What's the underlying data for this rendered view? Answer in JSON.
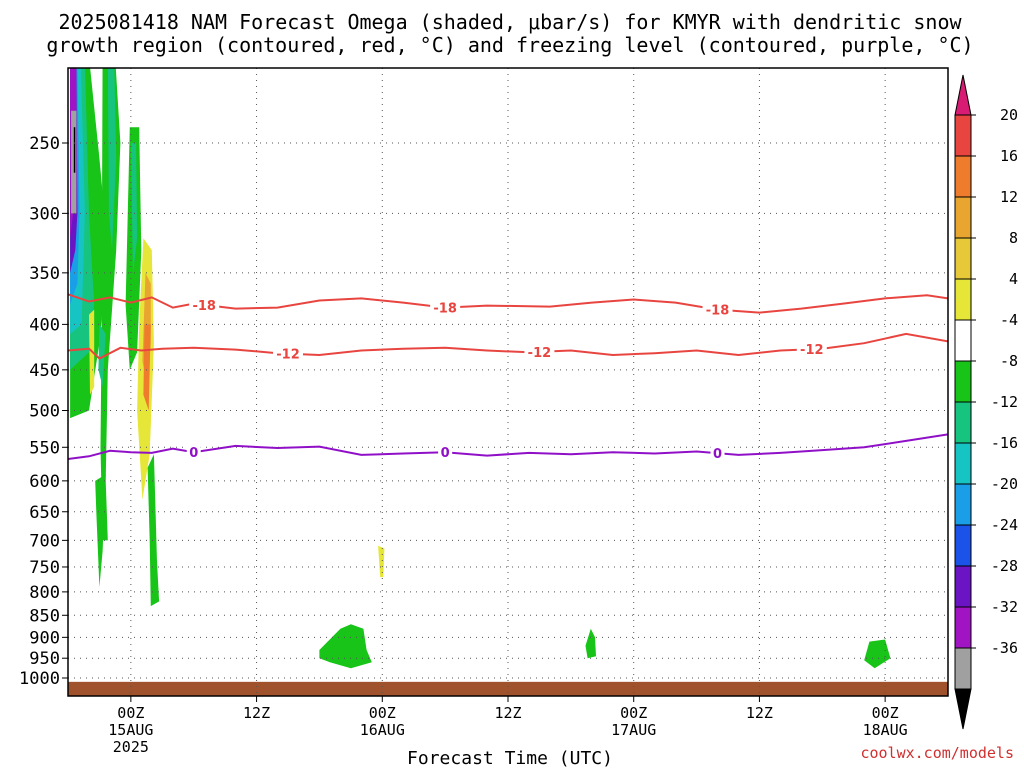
{
  "title": {
    "line1": "2025081418 NAM Forecast Omega (shaded, μbar/s) for KMYR with dendritic snow",
    "line2": "growth region (contoured, red, °C) and freezing level (contoured, purple, °C)"
  },
  "credit": "coolwx.com/models",
  "chart_data": {
    "type": "time-height cross section",
    "xlabel": "Forecast Time (UTC)",
    "x_ticks": [
      {
        "hours": 6,
        "lines": [
          "00Z",
          "15AUG",
          "2025"
        ]
      },
      {
        "hours": 18,
        "lines": [
          "12Z"
        ]
      },
      {
        "hours": 30,
        "lines": [
          "00Z",
          "16AUG"
        ]
      },
      {
        "hours": 42,
        "lines": [
          "12Z"
        ]
      },
      {
        "hours": 54,
        "lines": [
          "00Z",
          "17AUG"
        ]
      },
      {
        "hours": 66,
        "lines": [
          "12Z"
        ]
      },
      {
        "hours": 78,
        "lines": [
          "00Z",
          "18AUG"
        ]
      }
    ],
    "x_range_hours": [
      0,
      84
    ],
    "y_axis": "pressure (mb), log scale, inverted",
    "y_range_mb": [
      200,
      1030
    ],
    "y_ticks": [
      250,
      300,
      350,
      400,
      450,
      500,
      550,
      600,
      650,
      700,
      750,
      800,
      850,
      900,
      950,
      1000
    ],
    "grid": "dotted, at x and y ticks",
    "colorbar": {
      "ticks": [
        "20",
        "16",
        "12",
        "8",
        "4",
        "-4",
        "-8",
        "-12",
        "-16",
        "-20",
        "-24",
        "-28",
        "-32",
        "-36"
      ],
      "colors": [
        "#d81b73",
        "#e84540",
        "#ee7c2c",
        "#e8a630",
        "#e6c838",
        "#e6e638",
        "#ffffff",
        "#17c417",
        "#17c47f",
        "#17c4c4",
        "#1b9ee8",
        "#1b52e8",
        "#6a14c4",
        "#a014c4",
        "#a0a0a0",
        "#000000"
      ]
    },
    "contours": [
      {
        "label": "-18",
        "color": "#e84540",
        "points": [
          [
            0,
            370
          ],
          [
            2,
            377
          ],
          [
            4,
            373
          ],
          [
            6,
            378
          ],
          [
            8,
            373
          ],
          [
            10,
            383
          ],
          [
            12,
            379
          ],
          [
            16,
            384
          ],
          [
            20,
            383
          ],
          [
            24,
            376
          ],
          [
            28,
            374
          ],
          [
            32,
            378
          ],
          [
            36,
            383
          ],
          [
            40,
            381
          ],
          [
            46,
            382
          ],
          [
            50,
            378
          ],
          [
            54,
            375
          ],
          [
            58,
            378
          ],
          [
            62,
            385
          ],
          [
            66,
            388
          ],
          [
            70,
            384
          ],
          [
            74,
            379
          ],
          [
            78,
            374
          ],
          [
            82,
            371
          ],
          [
            84,
            374
          ]
        ],
        "label_hours": [
          13,
          36,
          62
        ]
      },
      {
        "label": "-12",
        "color": "#e84540",
        "points": [
          [
            0,
            428
          ],
          [
            2,
            426
          ],
          [
            3,
            437
          ],
          [
            5,
            425
          ],
          [
            7,
            428
          ],
          [
            9,
            426
          ],
          [
            12,
            425
          ],
          [
            16,
            427
          ],
          [
            20,
            431
          ],
          [
            24,
            433
          ],
          [
            28,
            428
          ],
          [
            32,
            426
          ],
          [
            36,
            425
          ],
          [
            40,
            428
          ],
          [
            44,
            430
          ],
          [
            48,
            428
          ],
          [
            52,
            433
          ],
          [
            56,
            431
          ],
          [
            60,
            428
          ],
          [
            64,
            433
          ],
          [
            68,
            428
          ],
          [
            72,
            426
          ],
          [
            76,
            420
          ],
          [
            80,
            410
          ],
          [
            84,
            418
          ]
        ],
        "label_hours": [
          21,
          45,
          71
        ]
      },
      {
        "label": "0",
        "color": "#9010c8",
        "points": [
          [
            0,
            567
          ],
          [
            2,
            563
          ],
          [
            4,
            555
          ],
          [
            6,
            557
          ],
          [
            8,
            558
          ],
          [
            10,
            552
          ],
          [
            12,
            557
          ],
          [
            16,
            548
          ],
          [
            20,
            551
          ],
          [
            24,
            549
          ],
          [
            28,
            561
          ],
          [
            32,
            559
          ],
          [
            36,
            557
          ],
          [
            40,
            562
          ],
          [
            44,
            558
          ],
          [
            48,
            560
          ],
          [
            52,
            557
          ],
          [
            56,
            559
          ],
          [
            60,
            556
          ],
          [
            64,
            561
          ],
          [
            68,
            558
          ],
          [
            72,
            554
          ],
          [
            76,
            550
          ],
          [
            80,
            541
          ],
          [
            84,
            532
          ]
        ],
        "label_hours": [
          12,
          36,
          62
        ]
      }
    ],
    "shaded_regions": [
      {
        "color": "#17c417",
        "points": [
          [
            0.2,
            200
          ],
          [
            2,
            200
          ],
          [
            3,
            260
          ],
          [
            3.8,
            330
          ],
          [
            3,
            420
          ],
          [
            2,
            500
          ],
          [
            0.2,
            510
          ]
        ]
      },
      {
        "color": "#17c47f",
        "points": [
          [
            0.2,
            200
          ],
          [
            1.6,
            200
          ],
          [
            2,
            300
          ],
          [
            2.5,
            380
          ],
          [
            2,
            430
          ],
          [
            0.2,
            450
          ]
        ]
      },
      {
        "color": "#17c4c4",
        "points": [
          [
            0.2,
            200
          ],
          [
            1.2,
            200
          ],
          [
            1.6,
            300
          ],
          [
            1.3,
            400
          ],
          [
            0.2,
            410
          ]
        ]
      },
      {
        "color": "#1b9ee8",
        "points": [
          [
            0.2,
            200
          ],
          [
            0.9,
            200
          ],
          [
            1.1,
            300
          ],
          [
            0.9,
            360
          ],
          [
            0.2,
            380
          ]
        ]
      },
      {
        "color": "#6a14c4",
        "points": [
          [
            0.2,
            200
          ],
          [
            0.8,
            200
          ],
          [
            0.9,
            300
          ],
          [
            0.7,
            330
          ],
          [
            0.2,
            350
          ]
        ]
      },
      {
        "color": "#a014c4",
        "points": [
          [
            0.2,
            200
          ],
          [
            0.8,
            200
          ],
          [
            0.8,
            280
          ],
          [
            0.2,
            320
          ]
        ]
      },
      {
        "color": "#a0a0a0",
        "points": [
          [
            0.3,
            230
          ],
          [
            0.8,
            230
          ],
          [
            0.8,
            300
          ],
          [
            0.3,
            300
          ]
        ]
      },
      {
        "color": "#000000",
        "points": [
          [
            0.55,
            240
          ],
          [
            0.7,
            240
          ],
          [
            0.7,
            270
          ],
          [
            0.55,
            270
          ]
        ]
      },
      {
        "color": "#17c417",
        "points": [
          [
            3.3,
            200
          ],
          [
            4.5,
            200
          ],
          [
            5,
            250
          ],
          [
            4.6,
            330
          ],
          [
            3.8,
            450
          ],
          [
            3.6,
            600
          ],
          [
            3.8,
            700
          ],
          [
            3.3,
            700
          ],
          [
            3.1,
            550
          ],
          [
            3.2,
            420
          ]
        ]
      },
      {
        "color": "#17c47f",
        "points": [
          [
            3.8,
            200
          ],
          [
            4.4,
            200
          ],
          [
            4.6,
            260
          ],
          [
            4.2,
            330
          ],
          [
            3.9,
            300
          ]
        ]
      },
      {
        "color": "#17c47f",
        "points": [
          [
            3,
            400
          ],
          [
            3.6,
            410
          ],
          [
            3.3,
            470
          ],
          [
            2.9,
            450
          ]
        ]
      },
      {
        "color": "#17c417",
        "points": [
          [
            2.6,
            600
          ],
          [
            3.6,
            590
          ],
          [
            3.3,
            720
          ],
          [
            3.0,
            790
          ],
          [
            2.7,
            650
          ]
        ]
      },
      {
        "color": "#17c417",
        "points": [
          [
            5.9,
            240
          ],
          [
            6.8,
            240
          ],
          [
            7,
            330
          ],
          [
            6.6,
            430
          ],
          [
            5.9,
            450
          ],
          [
            5.5,
            380
          ]
        ]
      },
      {
        "color": "#17c47f",
        "points": [
          [
            6,
            250
          ],
          [
            6.5,
            250
          ],
          [
            6.6,
            320
          ],
          [
            6.2,
            350
          ]
        ]
      },
      {
        "color": "#e6e638",
        "points": [
          [
            2.0,
            390
          ],
          [
            2.5,
            385
          ],
          [
            2.5,
            470
          ],
          [
            2.1,
            480
          ]
        ]
      },
      {
        "color": "#e6e638",
        "points": [
          [
            7.2,
            320
          ],
          [
            8.0,
            330
          ],
          [
            8.2,
            420
          ],
          [
            7.8,
            560
          ],
          [
            7.1,
            630
          ],
          [
            6.6,
            500
          ],
          [
            6.8,
            400
          ]
        ]
      },
      {
        "color": "#e8a630",
        "points": [
          [
            7.4,
            350
          ],
          [
            7.9,
            360
          ],
          [
            7.9,
            420
          ],
          [
            7.6,
            470
          ],
          [
            7.1,
            440
          ]
        ]
      },
      {
        "color": "#ee7c2c",
        "points": [
          [
            7.3,
            400
          ],
          [
            7.9,
            400
          ],
          [
            7.7,
            500
          ],
          [
            7.2,
            480
          ]
        ]
      },
      {
        "color": "#17c417",
        "points": [
          [
            7.6,
            580
          ],
          [
            8.2,
            560
          ],
          [
            8.5,
            740
          ],
          [
            8.7,
            820
          ],
          [
            7.9,
            830
          ],
          [
            7.8,
            700
          ]
        ]
      },
      {
        "color": "#e6e638",
        "points": [
          [
            29.6,
            710
          ],
          [
            30.2,
            715
          ],
          [
            30.1,
            770
          ],
          [
            29.8,
            770
          ]
        ]
      },
      {
        "color": "#17c417",
        "points": [
          [
            24.0,
            930
          ],
          [
            26,
            880
          ],
          [
            27,
            870
          ],
          [
            28.2,
            880
          ],
          [
            28.5,
            930
          ],
          [
            29,
            960
          ],
          [
            27,
            975
          ],
          [
            25,
            960
          ],
          [
            24,
            950
          ]
        ]
      },
      {
        "color": "#17c417",
        "points": [
          [
            49.4,
            920
          ],
          [
            49.9,
            880
          ],
          [
            50.3,
            900
          ],
          [
            50.4,
            945
          ],
          [
            49.6,
            950
          ]
        ]
      },
      {
        "color": "#17c417",
        "points": [
          [
            76.5,
            910
          ],
          [
            78,
            905
          ],
          [
            78.5,
            950
          ],
          [
            77,
            975
          ],
          [
            76,
            955
          ]
        ]
      }
    ],
    "terrain_band": {
      "color": "#a0522d",
      "from_mb": 1010,
      "to_mb": 1030
    }
  }
}
